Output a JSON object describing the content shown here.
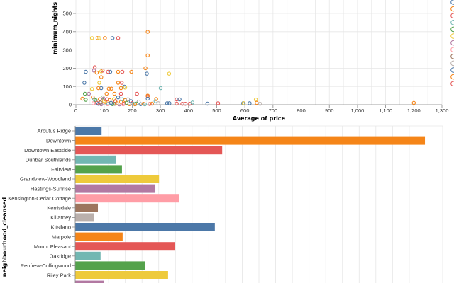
{
  "colors": [
    "#4c78a8",
    "#f58518",
    "#e45756",
    "#72b7b2",
    "#54a24b",
    "#eeca3b",
    "#b279a2",
    "#ff9da6",
    "#9d755d",
    "#bab0ac"
  ],
  "chart_data": [
    {
      "type": "scatter",
      "xlabel": "Average of price",
      "ylabel": "minimum_nights",
      "xlim": [
        0,
        1300
      ],
      "ylim": [
        0,
        600
      ],
      "x_ticks": [
        0,
        100,
        200,
        300,
        400,
        500,
        600,
        700,
        800,
        900,
        1000,
        1100,
        1200,
        1300
      ],
      "x_tick_labels": [
        "0",
        "100",
        "200",
        "300",
        "400",
        "500",
        "600",
        "700",
        "800",
        "900",
        "1,000",
        "1,100",
        "1,200",
        "1,300"
      ],
      "y_ticks": [
        0,
        100,
        200,
        300,
        400,
        500
      ],
      "legend": {
        "placement": "right",
        "color_indices": [
          0,
          1,
          2,
          3,
          4,
          5,
          6,
          7,
          8,
          9,
          0,
          1,
          2
        ]
      },
      "points": [
        [
          57,
          365,
          5
        ],
        [
          77,
          365,
          1
        ],
        [
          83,
          365,
          5
        ],
        [
          103,
          365,
          1
        ],
        [
          130,
          365,
          0
        ],
        [
          150,
          365,
          2
        ],
        [
          255,
          399,
          1
        ],
        [
          255,
          270,
          1
        ],
        [
          247,
          200,
          1
        ],
        [
          252,
          170,
          0
        ],
        [
          331,
          170,
          5
        ],
        [
          35,
          180,
          0
        ],
        [
          30,
          120,
          0
        ],
        [
          67,
          205,
          2
        ],
        [
          64,
          187,
          6
        ],
        [
          74,
          176,
          1
        ],
        [
          90,
          183,
          5
        ],
        [
          95,
          187,
          2
        ],
        [
          114,
          180,
          2
        ],
        [
          122,
          180,
          0
        ],
        [
          150,
          180,
          1
        ],
        [
          165,
          180,
          2
        ],
        [
          197,
          180,
          1
        ],
        [
          90,
          151,
          1
        ],
        [
          83,
          120,
          5
        ],
        [
          150,
          120,
          1
        ],
        [
          163,
          120,
          2
        ],
        [
          32,
          60,
          4
        ],
        [
          46,
          60,
          6
        ],
        [
          35,
          27,
          4
        ],
        [
          23,
          33,
          1
        ],
        [
          57,
          86,
          5
        ],
        [
          90,
          91,
          0
        ],
        [
          80,
          91,
          1
        ],
        [
          117,
          88,
          1
        ],
        [
          126,
          88,
          1
        ],
        [
          160,
          91,
          1
        ],
        [
          175,
          94,
          5
        ],
        [
          172,
          99,
          0
        ],
        [
          137,
          60,
          1
        ],
        [
          160,
          60,
          2
        ],
        [
          109,
          60,
          1
        ],
        [
          217,
          60,
          2
        ],
        [
          255,
          46,
          2
        ],
        [
          255,
          50,
          1
        ],
        [
          301,
          91,
          3
        ],
        [
          285,
          31,
          1
        ],
        [
          358,
          29,
          2
        ],
        [
          368,
          29,
          0
        ],
        [
          283,
          19,
          3
        ],
        [
          255,
          33,
          0
        ],
        [
          223,
          17,
          9
        ],
        [
          293,
          8,
          9
        ],
        [
          324,
          8,
          0
        ],
        [
          332,
          8,
          0
        ],
        [
          358,
          6,
          2
        ],
        [
          378,
          5,
          2
        ],
        [
          389,
          5,
          2
        ],
        [
          404,
          5,
          2
        ],
        [
          414,
          12,
          3
        ],
        [
          467,
          6,
          0
        ],
        [
          505,
          8,
          2
        ],
        [
          594,
          8,
          0
        ],
        [
          596,
          8,
          5
        ],
        [
          617,
          8,
          0
        ],
        [
          639,
          28,
          5
        ],
        [
          642,
          10,
          1
        ],
        [
          654,
          5,
          9
        ],
        [
          1200,
          10,
          1
        ],
        [
          60,
          40,
          1
        ],
        [
          65,
          30,
          3
        ],
        [
          70,
          25,
          4
        ],
        [
          75,
          10,
          2
        ],
        [
          80,
          5,
          0
        ],
        [
          85,
          30,
          1
        ],
        [
          90,
          2,
          6
        ],
        [
          95,
          40,
          4
        ],
        [
          100,
          20,
          5
        ],
        [
          105,
          15,
          1
        ],
        [
          110,
          30,
          2
        ],
        [
          115,
          5,
          3
        ],
        [
          120,
          25,
          1
        ],
        [
          125,
          10,
          0
        ],
        [
          130,
          3,
          4
        ],
        [
          135,
          30,
          5
        ],
        [
          140,
          20,
          2
        ],
        [
          145,
          8,
          1
        ],
        [
          150,
          40,
          0
        ],
        [
          155,
          2,
          6
        ],
        [
          160,
          15,
          1
        ],
        [
          165,
          30,
          3
        ],
        [
          170,
          5,
          2
        ],
        [
          175,
          25,
          1
        ],
        [
          180,
          10,
          4
        ],
        [
          185,
          30,
          9
        ],
        [
          190,
          3,
          1
        ],
        [
          195,
          20,
          0
        ],
        [
          200,
          8,
          2
        ],
        [
          205,
          5,
          3
        ],
        [
          210,
          2,
          1
        ],
        [
          215,
          6,
          4
        ],
        [
          230,
          3,
          0
        ],
        [
          240,
          5,
          1
        ],
        [
          245,
          2,
          3
        ],
        [
          262,
          4,
          2
        ],
        [
          270,
          6,
          1
        ],
        [
          62,
          8,
          7
        ],
        [
          88,
          12,
          8
        ],
        [
          112,
          3,
          7
        ],
        [
          138,
          5,
          8
        ],
        [
          168,
          2,
          7
        ],
        [
          98,
          33,
          6
        ]
      ]
    },
    {
      "type": "bar",
      "orientation": "horizontal",
      "ylabel": "neighbourhood_cleansed",
      "xlim": [
        0,
        1100
      ],
      "categories": [
        "Arbutus Ridge",
        "Downtown",
        "Downtown Eastside",
        "Dunbar Southlands",
        "Fairview",
        "Grandview-Woodland",
        "Hastings-Sunrise",
        "Kensington-Cedar Cottage",
        "Kerrisdale",
        "Killarney",
        "Kitsilano",
        "Marpole",
        "Mount Pleasant",
        "Oakridge",
        "Renfrew-Collingwood",
        "Riley Park",
        ""
      ],
      "values": [
        79,
        1047,
        440,
        123,
        140,
        251,
        240,
        312,
        68,
        57,
        418,
        142,
        299,
        76,
        210,
        278,
        87
      ],
      "color_indices": [
        0,
        1,
        2,
        3,
        4,
        5,
        6,
        7,
        8,
        9,
        0,
        1,
        2,
        3,
        4,
        5,
        6
      ]
    }
  ]
}
